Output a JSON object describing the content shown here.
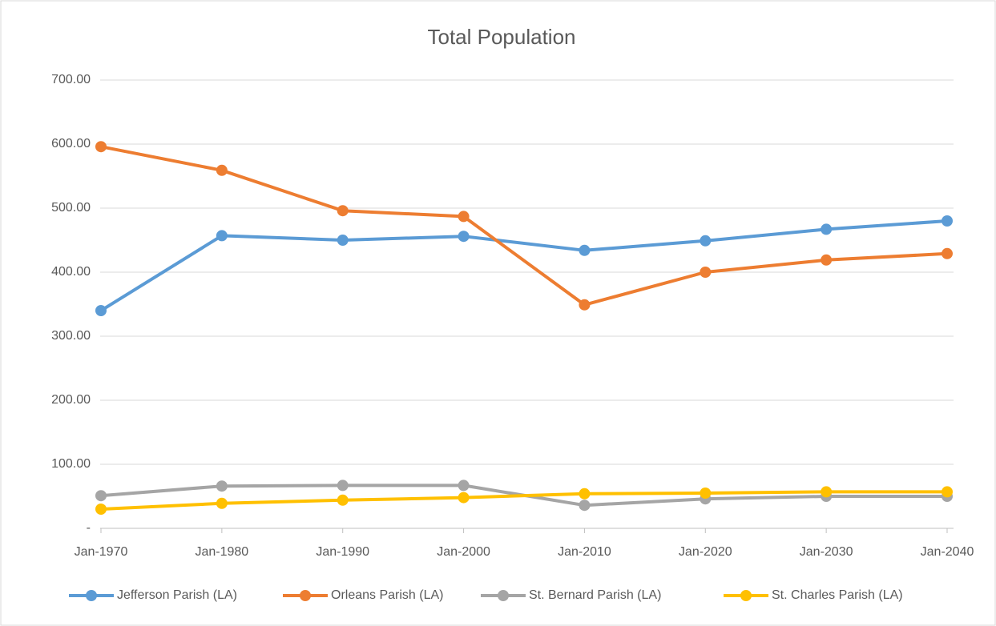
{
  "chart_data": {
    "type": "line",
    "title": "Total Population",
    "categories": [
      "Jan-1970",
      "Jan-1980",
      "Jan-1990",
      "Jan-2000",
      "Jan-2010",
      "Jan-2020",
      "Jan-2030",
      "Jan-2040"
    ],
    "series": [
      {
        "name": "Jefferson Parish (LA)",
        "color": "#5b9bd5",
        "values": [
          340,
          457,
          450,
          456,
          434,
          449,
          467,
          480
        ]
      },
      {
        "name": "Orleans Parish (LA)",
        "color": "#ed7d31",
        "values": [
          596,
          559,
          496,
          487,
          349,
          400,
          419,
          429
        ]
      },
      {
        "name": "St. Bernard Parish (LA)",
        "color": "#a5a5a5",
        "values": [
          51,
          66,
          67,
          67,
          36,
          46,
          50,
          50
        ]
      },
      {
        "name": "St. Charles Parish (LA)",
        "color": "#ffc000",
        "values": [
          30,
          39,
          44,
          48,
          54,
          55,
          57,
          57
        ]
      }
    ],
    "ylim": [
      0,
      700
    ],
    "yticks": [
      {
        "value": 0,
        "label": "-"
      },
      {
        "value": 100,
        "label": "100.00"
      },
      {
        "value": 200,
        "label": "200.00"
      },
      {
        "value": 300,
        "label": "300.00"
      },
      {
        "value": 400,
        "label": "400.00"
      },
      {
        "value": 500,
        "label": "500.00"
      },
      {
        "value": 600,
        "label": "600.00"
      },
      {
        "value": 700,
        "label": "700.00"
      }
    ],
    "grid": true,
    "legend": "bottom"
  }
}
